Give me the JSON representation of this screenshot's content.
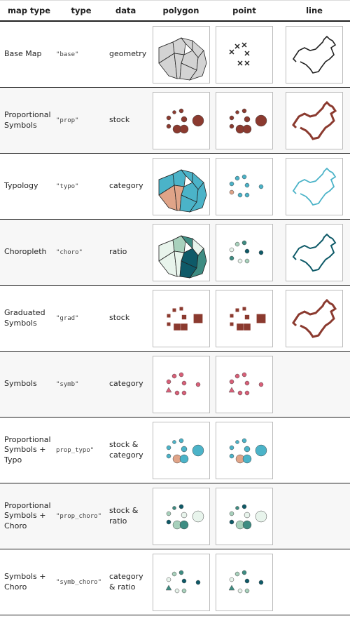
{
  "headers": [
    "map type",
    "type",
    "data",
    "polygon",
    "point",
    "line"
  ],
  "rows": [
    {
      "name": [
        "Base Map"
      ],
      "code": "\"base\"",
      "data": [
        "geometry"
      ],
      "variant": "base",
      "point": "base",
      "line": "base"
    },
    {
      "name": [
        "Proportional",
        "Symbols"
      ],
      "code": "\"prop\"",
      "data": [
        "stock"
      ],
      "variant": "prop",
      "point": "prop",
      "line": "prop"
    },
    {
      "name": [
        "Typology"
      ],
      "code": "\"typo\"",
      "data": [
        "category"
      ],
      "variant": "typo",
      "point": "typo",
      "line": "typo"
    },
    {
      "name": [
        "Choropleth"
      ],
      "code": "\"choro\"",
      "data": [
        "ratio"
      ],
      "variant": "choro",
      "point": "choro",
      "line": "choro"
    },
    {
      "name": [
        "Graduated",
        "Symbols"
      ],
      "code": "\"grad\"",
      "data": [
        "stock"
      ],
      "variant": "grad",
      "point": "grad",
      "line": "grad"
    },
    {
      "name": [
        "Symbols"
      ],
      "code": "\"symb\"",
      "data": [
        "category"
      ],
      "variant": "symb",
      "point": "symb",
      "line": null
    },
    {
      "name": [
        "Proportional",
        "Symbols +",
        "Typo"
      ],
      "code": "prop_typo\"",
      "data": [
        "stock &",
        "category"
      ],
      "variant": "prop_typo",
      "point": "prop_typo",
      "line": null
    },
    {
      "name": [
        "Proportional",
        "Symbols +",
        "Choro"
      ],
      "code": "\"prop_choro\"",
      "data": [
        "stock &",
        "ratio"
      ],
      "variant": "prop_choro",
      "point": "prop_choro",
      "line": null
    },
    {
      "name": [
        "Symbols +",
        "Choro"
      ],
      "code": "\"symb_choro\"",
      "data": [
        "category",
        "& ratio"
      ],
      "variant": "symb_choro",
      "point": "symb_choro",
      "line": null
    }
  ],
  "colors": {
    "border": "#222222",
    "base_fill": "#d3d3d3",
    "prop": "#8b3a2f",
    "typo": [
      "#4bb3c8",
      "#e0a488",
      "#d68fd6",
      "#93b36a"
    ],
    "choro": [
      "#e8f4ec",
      "#a8d1bc",
      "#3e8c82",
      "#0e5a68"
    ],
    "symb": [
      "#d95f78",
      "#c04a63"
    ]
  }
}
